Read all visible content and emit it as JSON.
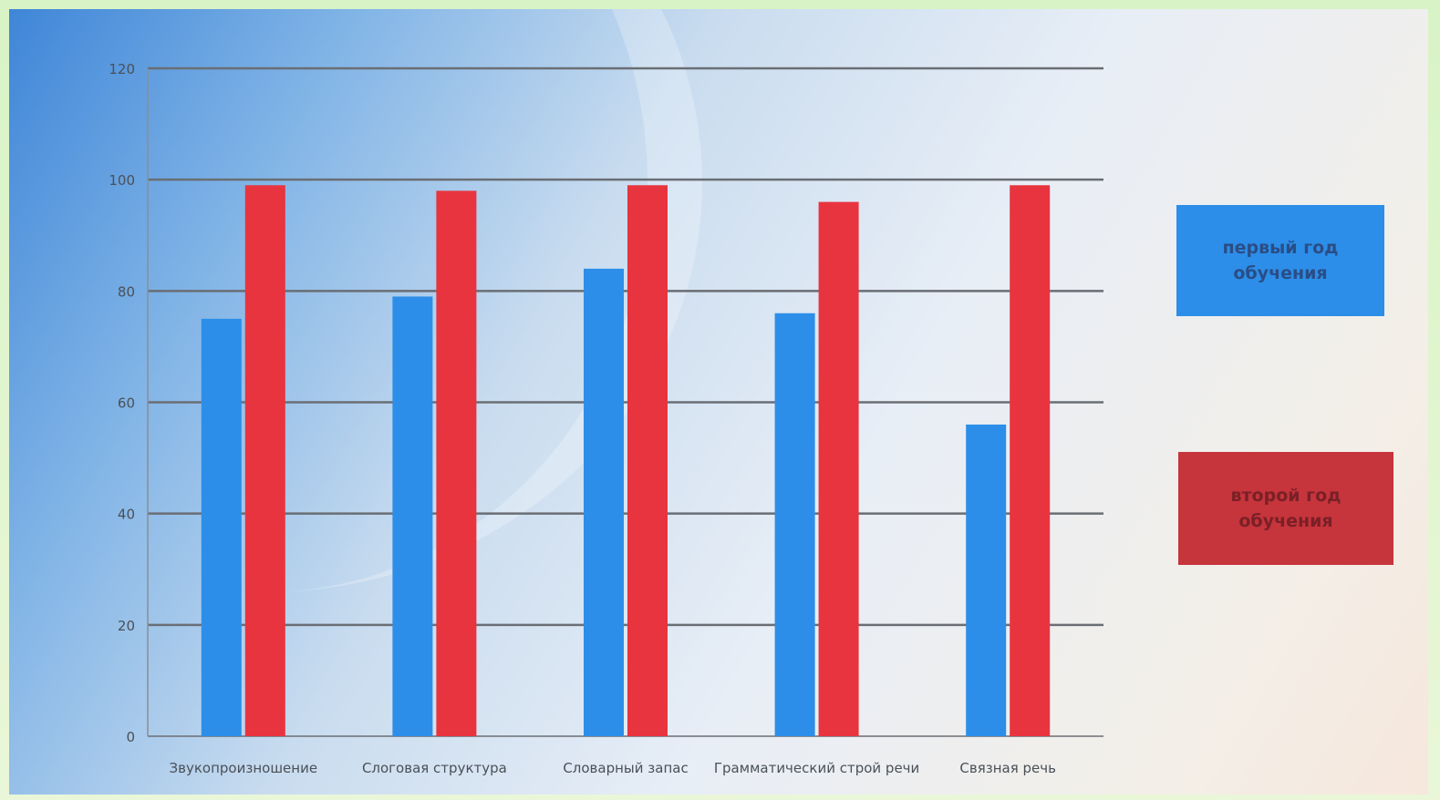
{
  "chart_data": {
    "type": "bar",
    "categories": [
      "Звукопроизношение",
      "Слоговая структура",
      "Словарный запас",
      "Грамматический строй речи",
      "Связная речь"
    ],
    "series": [
      {
        "name": "первый год обучения",
        "values": [
          75,
          79,
          84,
          76,
          56
        ]
      },
      {
        "name": "второй год обучения",
        "values": [
          99,
          98,
          99,
          96,
          99
        ]
      }
    ],
    "ylim": [
      0,
      120
    ],
    "yticks": [
      0,
      20,
      40,
      60,
      80,
      100,
      120
    ],
    "grid": true,
    "legend": "right",
    "colors": {
      "series1": "#2c8ee8",
      "series2": "#e8343f",
      "gridline": "#6a6e74"
    }
  },
  "legend": {
    "item1": "первый год обучения",
    "item2": "второй год обучения"
  }
}
